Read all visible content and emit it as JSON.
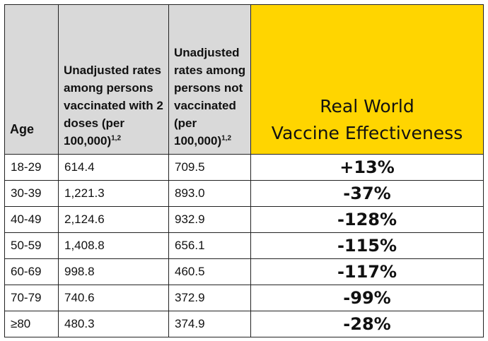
{
  "headers": {
    "age": "Age",
    "vaccinated": "Unadjusted rates among persons vaccinated with 2 doses (per 100,000)",
    "vaccinated_sup": "1,2",
    "unvaccinated": "Unadjusted rates among persons not vaccinated (per 100,000)",
    "unvaccinated_sup": "1,2",
    "effectiveness_line1": "Real World",
    "effectiveness_line2": "Vaccine Effectiveness"
  },
  "rows": [
    {
      "age": "18-29",
      "vaccinated": "614.4",
      "unvaccinated": "709.5",
      "effectiveness": "+13%"
    },
    {
      "age": "30-39",
      "vaccinated": "1,221.3",
      "unvaccinated": "893.0",
      "effectiveness": "-37%"
    },
    {
      "age": "40-49",
      "vaccinated": "2,124.6",
      "unvaccinated": "932.9",
      "effectiveness": "-128%"
    },
    {
      "age": "50-59",
      "vaccinated": "1,408.8",
      "unvaccinated": "656.1",
      "effectiveness": "-115%"
    },
    {
      "age": "60-69",
      "vaccinated": "998.8",
      "unvaccinated": "460.5",
      "effectiveness": "-117%"
    },
    {
      "age": "70-79",
      "vaccinated": "740.6",
      "unvaccinated": "372.9",
      "effectiveness": "-99%"
    },
    {
      "age": "≥80",
      "vaccinated": "480.3",
      "unvaccinated": "374.9",
      "effectiveness": "-28%"
    }
  ],
  "colors": {
    "header_gray": "#d9d9d9",
    "header_gold": "#ffd500",
    "border": "#222222"
  }
}
